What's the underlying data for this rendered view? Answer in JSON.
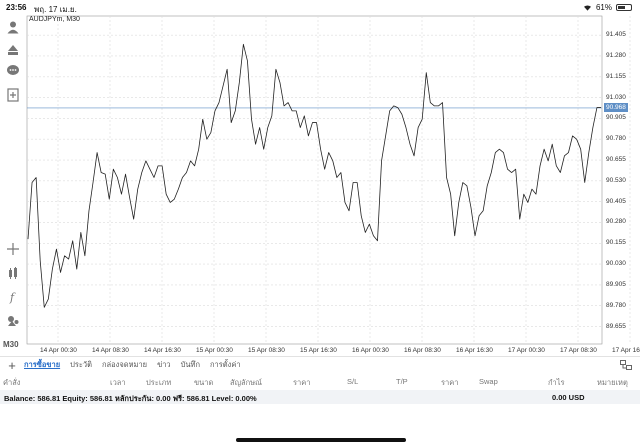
{
  "status_bar": {
    "time": "23:56",
    "date": "พฤ. 17 เม.ย.",
    "battery_text": "61%",
    "battery_level": 0.61
  },
  "toolbar": {
    "icons": [
      "account-icon",
      "trade-icon",
      "chat-icon",
      "add-chart-icon",
      "crosshair-icon",
      "indicators-icon",
      "function-icon",
      "objects-icon"
    ],
    "timeframe": "M30"
  },
  "chart": {
    "symbol_label": "AUDJPYm, M30",
    "current_price": "90.968",
    "current_price_value": 90.968,
    "line_color": "#222222",
    "price_line_color": "#5f8fc6"
  },
  "chart_data": {
    "type": "line",
    "symbol": "AUDJPYm",
    "timeframe": "M30",
    "ylim": [
      89.55,
      91.52
    ],
    "y_ticks": [
      "91.405",
      "91.280",
      "91.155",
      "91.030",
      "90.905",
      "90.780",
      "90.655",
      "90.530",
      "90.405",
      "90.280",
      "90.155",
      "90.030",
      "89.905",
      "89.780",
      "89.655"
    ],
    "x_ticks": [
      "14 Apr 00:30",
      "14 Apr 08:30",
      "14 Apr 16:30",
      "15 Apr 00:30",
      "15 Apr 08:30",
      "15 Apr 16:30",
      "16 Apr 00:30",
      "16 Apr 08:30",
      "16 Apr 16:30",
      "17 Apr 00:30",
      "17 Apr 08:30",
      "17 Apr 16:30"
    ],
    "series": [
      {
        "values": [
          90.18,
          90.52,
          90.55,
          90.05,
          89.77,
          89.82,
          90.0,
          90.12,
          89.98,
          90.08,
          90.06,
          90.17,
          90.0,
          90.22,
          90.08,
          90.35,
          90.52,
          90.7,
          90.58,
          90.57,
          90.42,
          90.6,
          90.55,
          90.45,
          90.57,
          90.43,
          90.3,
          90.48,
          90.58,
          90.65,
          90.6,
          90.55,
          90.62,
          90.62,
          90.45,
          90.4,
          90.42,
          90.48,
          90.55,
          90.58,
          90.65,
          90.62,
          90.72,
          90.9,
          90.78,
          90.82,
          90.95,
          91.0,
          91.1,
          91.2,
          90.88,
          90.95,
          91.12,
          91.35,
          91.25,
          90.9,
          90.75,
          90.85,
          90.72,
          90.85,
          90.92,
          91.2,
          91.12,
          90.98,
          91.0,
          90.95,
          90.95,
          90.85,
          90.92,
          90.8,
          90.88,
          90.88,
          90.72,
          90.6,
          90.7,
          90.65,
          90.55,
          90.58,
          90.4,
          90.35,
          90.52,
          90.52,
          90.32,
          90.22,
          90.27,
          90.2,
          90.17,
          90.65,
          90.8,
          90.95,
          90.98,
          90.97,
          90.93,
          90.85,
          90.75,
          90.68,
          90.85,
          90.9,
          91.18,
          91.0,
          90.98,
          90.98,
          91.0,
          90.55,
          90.45,
          90.2,
          90.4,
          90.52,
          90.5,
          90.37,
          90.2,
          90.32,
          90.35,
          90.5,
          90.58,
          90.7,
          90.72,
          90.7,
          90.6,
          90.58,
          90.6,
          90.3,
          90.45,
          90.4,
          90.48,
          90.45,
          90.62,
          90.72,
          90.65,
          90.75,
          90.62,
          90.58,
          90.68,
          90.7,
          90.8,
          90.78,
          90.72,
          90.52,
          90.7,
          90.85,
          90.97,
          90.97
        ]
      }
    ],
    "grid": true,
    "legend": "none"
  },
  "bottom_tabs": {
    "add_label": "+",
    "tabs": [
      {
        "label": "การซื้อขาย",
        "active": true
      },
      {
        "label": "ประวัติ",
        "active": false
      },
      {
        "label": "กล่องจดหมาย",
        "active": false
      },
      {
        "label": "ข่าว",
        "active": false
      },
      {
        "label": "บันทึก",
        "active": false
      },
      {
        "label": "การตั้งค่า",
        "active": false
      }
    ]
  },
  "trade_columns": [
    "คำสั่ง",
    "เวลา",
    "ประเภท",
    "ขนาด",
    "สัญลักษณ์",
    "ราคา",
    "S/L",
    "T/P",
    "ราคา",
    "Swap",
    "กำไร",
    "หมายเหตุ"
  ],
  "balance": {
    "text": "Balance: 586.81  Equity: 586.81  หลักประกัน: 0.00  ฟรี: 586.81  Level: 0.00%",
    "profit": "0.00  USD"
  }
}
